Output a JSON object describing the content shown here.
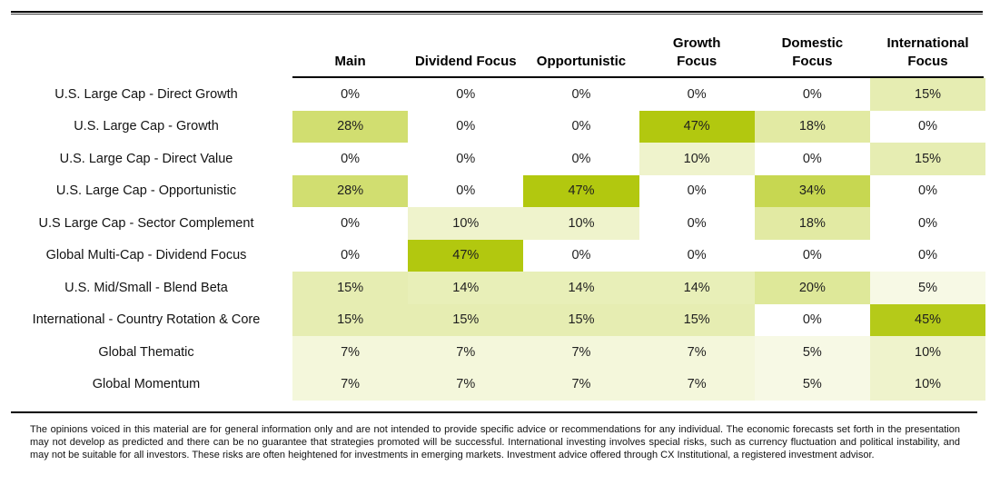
{
  "chart_data": {
    "type": "heatmap",
    "title": "",
    "unit": "%",
    "columns": [
      "Main",
      "Dividend Focus",
      "Opportunistic",
      "Growth Focus",
      "Domestic Focus",
      "International Focus"
    ],
    "column_display": [
      "Main",
      "Dividend Focus",
      "Opportunistic",
      "Growth\nFocus",
      "Domestic\nFocus",
      "International\nFocus"
    ],
    "rows": [
      "U.S. Large Cap - Direct Growth",
      "U.S. Large Cap - Growth",
      "U.S. Large Cap - Direct Value",
      "U.S. Large Cap - Opportunistic",
      "U.S Large Cap - Sector Complement",
      "Global Multi-Cap - Dividend Focus",
      "U.S. Mid/Small - Blend Beta",
      "International - Country Rotation & Core",
      "Global Thematic",
      "Global Momentum"
    ],
    "values": [
      [
        0,
        0,
        0,
        0,
        0,
        15
      ],
      [
        28,
        0,
        0,
        47,
        18,
        0
      ],
      [
        0,
        0,
        0,
        10,
        0,
        15
      ],
      [
        28,
        0,
        47,
        0,
        34,
        0
      ],
      [
        0,
        10,
        10,
        0,
        18,
        0
      ],
      [
        0,
        47,
        0,
        0,
        0,
        0
      ],
      [
        15,
        14,
        14,
        14,
        20,
        5
      ],
      [
        15,
        15,
        15,
        15,
        0,
        45
      ],
      [
        7,
        7,
        7,
        7,
        5,
        10
      ],
      [
        7,
        7,
        7,
        7,
        5,
        10
      ]
    ],
    "color_scale": {
      "min_color": "#FFFFFF",
      "max_color": "#B2C80F",
      "min_value": 0,
      "max_value": 47
    },
    "legend_position": "none",
    "grid": false
  },
  "footer": {
    "disclaimer": "The opinions voiced in this material are for general information only and are not intended to provide specific advice or recommendations for any individual.  The economic forecasts set forth in the presentation may not develop as predicted and there can be no guarantee that strategies promoted will be successful.  International investing involves special risks, such as currency fluctuation and political instability, and may not be suitable for all investors.  These risks are often heightened for investments in emerging markets. Investment advice offered through CX Institutional, a registered investment advisor."
  }
}
